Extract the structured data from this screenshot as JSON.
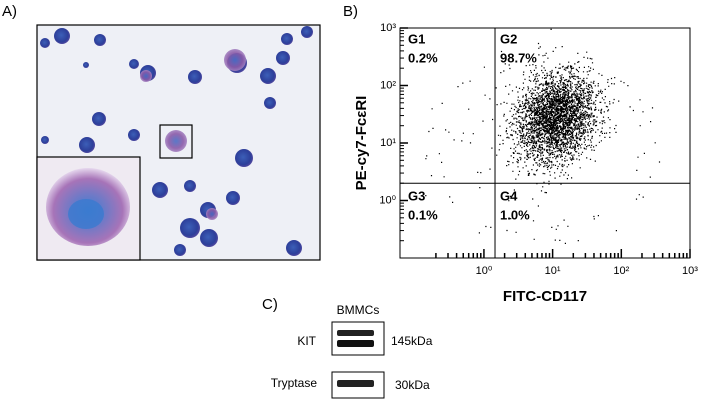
{
  "panel_a": {
    "label": "A)"
  },
  "panel_b": {
    "label": "B)",
    "ylabel": "PE-cy7-FcεRI",
    "xlabel": "FITC-CD117",
    "log_scale": true,
    "xlim": [
      0.06,
      1000
    ],
    "ylim": [
      0.1,
      1000
    ],
    "xticks": [
      {
        "value": 1,
        "label": "10⁰"
      },
      {
        "value": 10,
        "label": "10¹"
      },
      {
        "value": 100,
        "label": "10²"
      },
      {
        "value": 1000,
        "label": "10³"
      }
    ],
    "yticks": [
      {
        "value": 1,
        "label": "10⁰"
      },
      {
        "value": 10,
        "label": "10¹"
      },
      {
        "value": 100,
        "label": "10²"
      },
      {
        "value": 1000,
        "label": "10³"
      }
    ],
    "gates": {
      "x": 1.45,
      "y": 2
    },
    "quadrants": [
      {
        "name": "G1",
        "percent": "0.2%"
      },
      {
        "name": "G2",
        "percent": "98.7%"
      },
      {
        "name": "G3",
        "percent": "0.1%"
      },
      {
        "name": "G4",
        "percent": "1.0%"
      }
    ]
  },
  "panel_c": {
    "label": "C)",
    "column": "BMMCs",
    "blots": [
      {
        "protein": "KIT",
        "size": "145kDa"
      },
      {
        "protein": "Tryptase",
        "size": "30kDa"
      }
    ]
  }
}
